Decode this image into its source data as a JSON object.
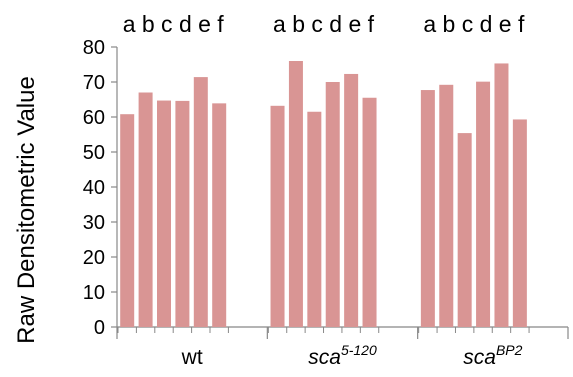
{
  "chart_data": {
    "type": "bar",
    "ylabel": "Raw Densitometric Value",
    "ylim": [
      0,
      80
    ],
    "yticks": [
      "0",
      "10",
      "20",
      "30",
      "40",
      "50",
      "60",
      "70",
      "80"
    ],
    "groups": [
      {
        "name": "wt",
        "italic": false,
        "superscript": ""
      },
      {
        "name": "sca",
        "italic": true,
        "superscript": "5-120"
      },
      {
        "name": "sca",
        "italic": true,
        "superscript": "BP2"
      }
    ],
    "bar_letters": "a b c d e f",
    "bar_color": "#d99594",
    "values": [
      [
        60.8,
        67.0,
        64.7,
        64.6,
        71.4,
        63.9
      ],
      [
        63.2,
        76.0,
        61.5,
        70.0,
        72.3,
        65.5
      ],
      [
        67.7,
        69.2,
        55.4,
        70.1,
        75.3,
        59.3
      ]
    ],
    "grid": false
  }
}
